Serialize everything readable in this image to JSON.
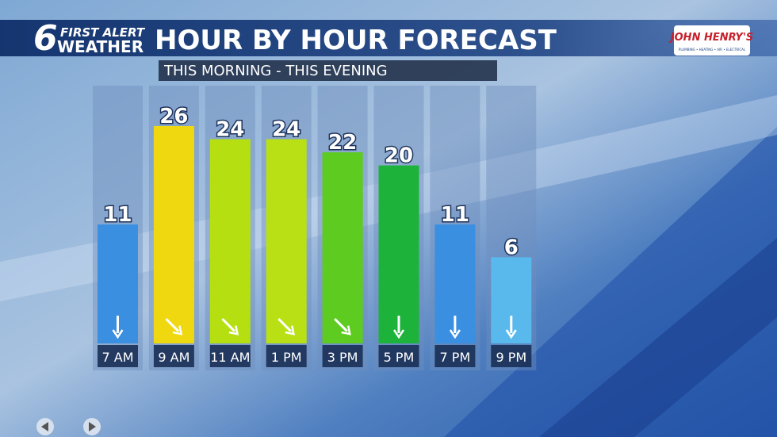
{
  "chart_data": {
    "type": "bar",
    "brand": {
      "number": "6",
      "line1": "FIRST ALERT",
      "line2": "WEATHER"
    },
    "title": "HOUR BY HOUR FORECAST",
    "subtitle": "THIS MORNING - THIS EVENING",
    "sponsor": "JOHN HENRY'S",
    "sponsor_tagline": "PLUMBING • HEATING • AIR • ELECTRICAL",
    "categories": [
      "7 AM",
      "9 AM",
      "11 AM",
      "1 PM",
      "3 PM",
      "5 PM",
      "7 PM",
      "9 PM"
    ],
    "values": [
      11,
      26,
      24,
      24,
      22,
      20,
      11,
      6
    ],
    "colors": [
      "#3a8fe0",
      "#efd80f",
      "#b6df12",
      "#b8e014",
      "#5dcb1f",
      "#1db33b",
      "#3a8fe0",
      "#5ab9ec"
    ]
  }
}
